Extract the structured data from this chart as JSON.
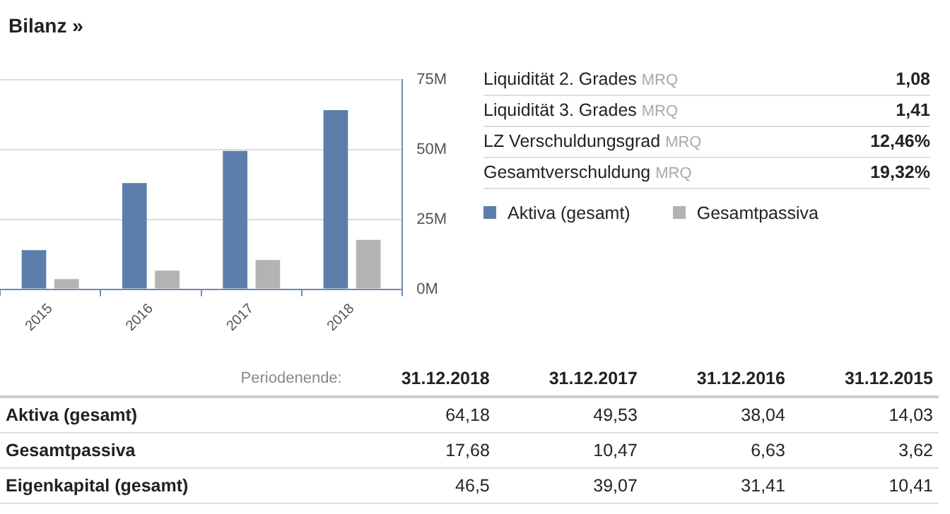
{
  "chart_data": [
    {
      "type": "bar",
      "title": "Bilanz »",
      "categories": [
        "2015",
        "2016",
        "2017",
        "2018"
      ],
      "series": [
        {
          "name": "Aktiva (gesamt)",
          "color": "#5b7faa",
          "values": [
            14.03,
            38.04,
            49.53,
            64.18
          ]
        },
        {
          "name": "Gesamtpassiva",
          "color": "#b3b3b3",
          "values": [
            3.62,
            6.63,
            10.47,
            17.68
          ]
        }
      ],
      "ylim": [
        0,
        75
      ],
      "yticks": [
        {
          "value": 0,
          "label": "0M"
        },
        {
          "value": 25,
          "label": "25M"
        },
        {
          "value": 50,
          "label": "50M"
        },
        {
          "value": 75,
          "label": "75M"
        }
      ],
      "grid": "y",
      "legend": "right"
    },
    {
      "type": "other",
      "categories": [
        "Liquidität 2. Grades",
        "Liquidität 3. Grades",
        "LZ Verschuldungsgrad",
        "Gesamtverschuldung"
      ],
      "values": [
        1.08,
        1.41,
        12.46,
        19.32
      ],
      "value_labels": [
        "1,08",
        "1,41",
        "12,46%",
        "19,32%"
      ],
      "annotations": [
        "MRQ"
      ]
    },
    {
      "type": "other",
      "xlabel": "Periodenende:",
      "categories": [
        "31.12.2018",
        "31.12.2017",
        "31.12.2016",
        "31.12.2015"
      ],
      "series": [
        {
          "name": "Aktiva (gesamt)",
          "values": [
            64.18,
            49.53,
            38.04,
            14.03
          ],
          "value_labels": [
            "64,18",
            "49,53",
            "38,04",
            "14,03"
          ]
        },
        {
          "name": "Gesamtpassiva",
          "values": [
            17.68,
            10.47,
            6.63,
            3.62
          ],
          "value_labels": [
            "17,68",
            "10,47",
            "6,63",
            "3,62"
          ]
        },
        {
          "name": "Eigenkapital (gesamt)",
          "values": [
            46.5,
            39.07,
            31.41,
            10.41
          ],
          "value_labels": [
            "46,5",
            "39,07",
            "31,41",
            "10,41"
          ]
        }
      ]
    }
  ]
}
